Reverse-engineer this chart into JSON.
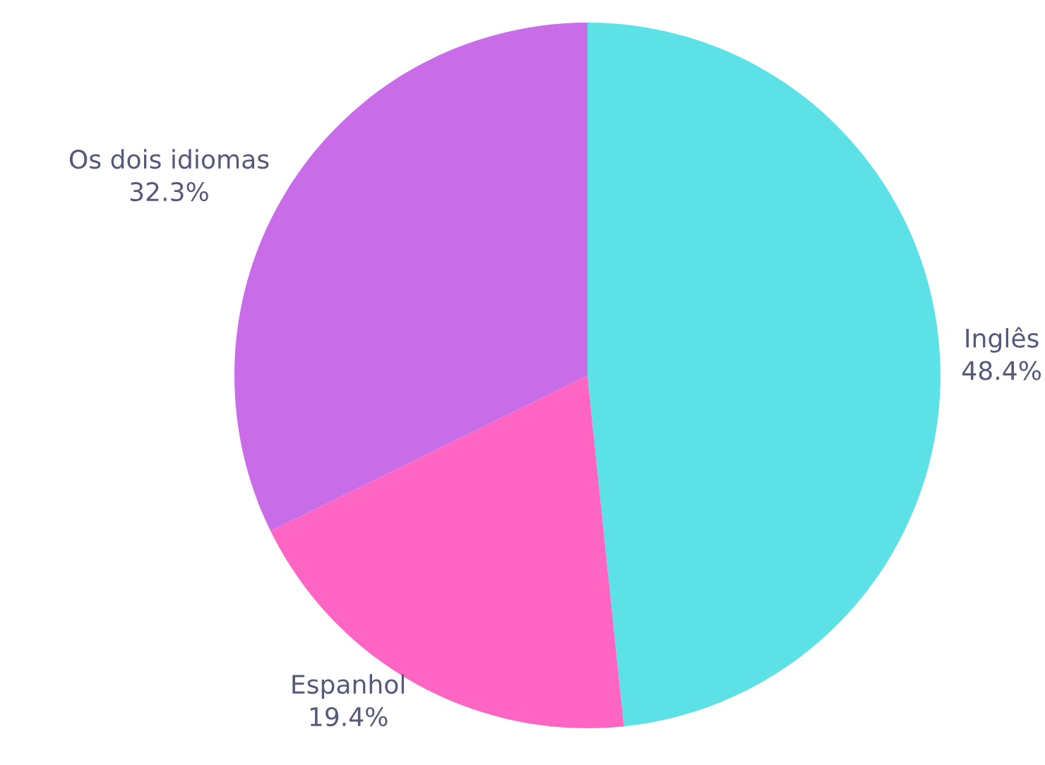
{
  "chart_data": {
    "type": "pie",
    "categories": [
      "Inglês",
      "Espanhol",
      "Os dois idiomas"
    ],
    "values": [
      48.4,
      19.4,
      32.3
    ],
    "value_labels": [
      "48.4%",
      "19.4%",
      "32.3%"
    ],
    "colors": [
      "#5ce1e6",
      "#ff66c4",
      "#c86ce8"
    ],
    "legend": false
  }
}
